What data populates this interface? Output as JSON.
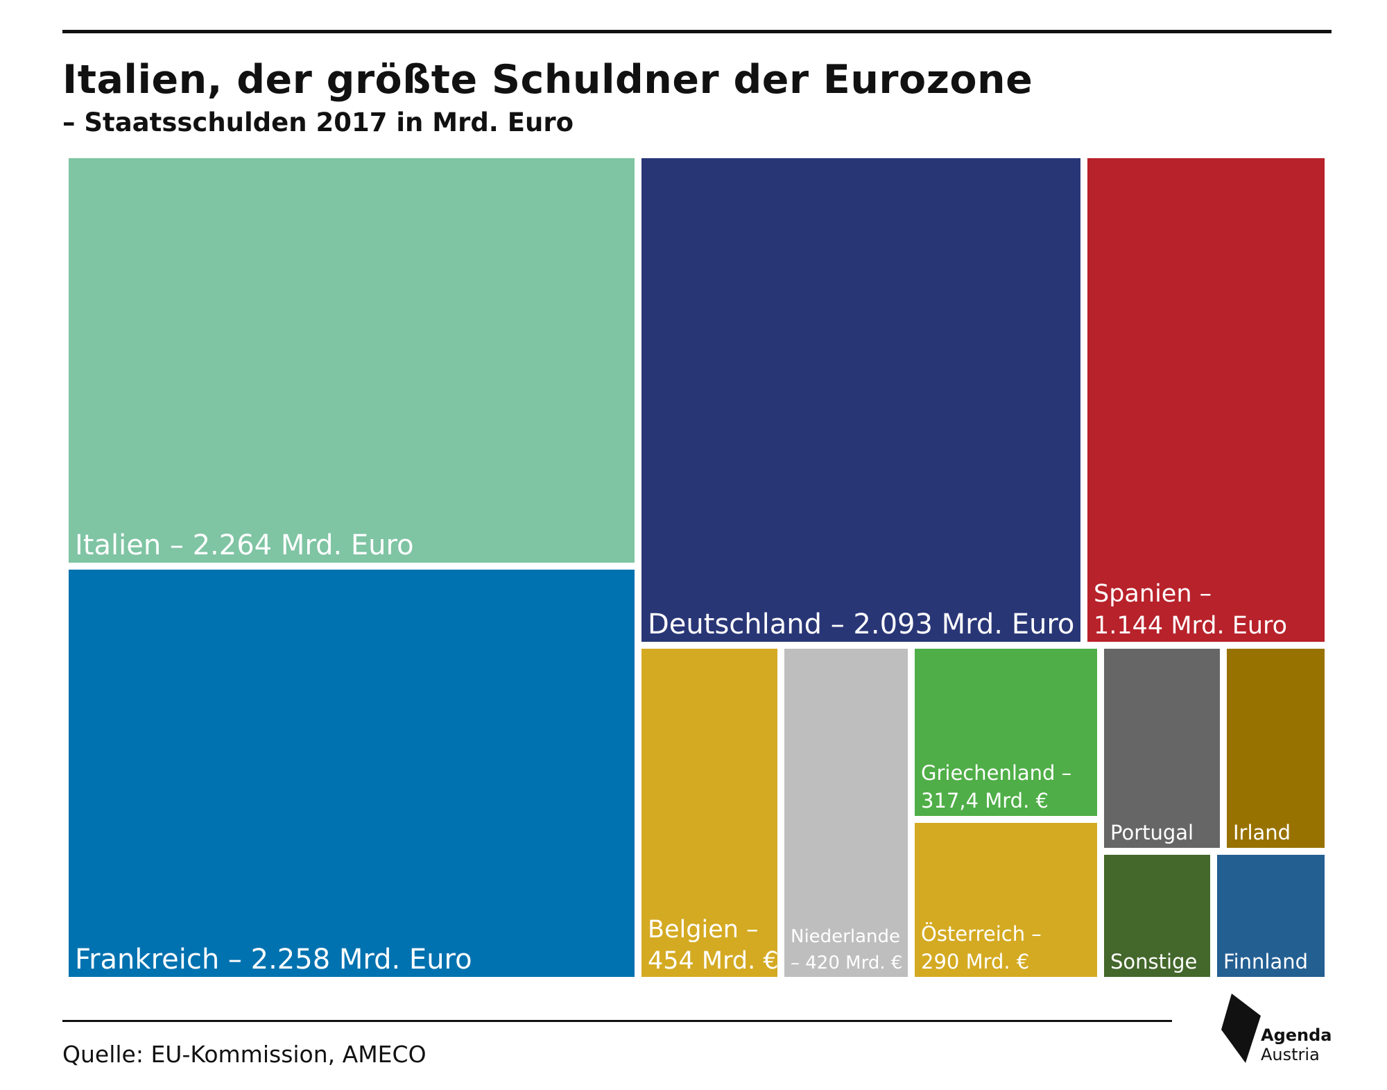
{
  "header": {
    "title": "Italien, der größte Schuldner der Eurozone",
    "subtitle": "– Staatsschulden 2017 in Mrd. Euro"
  },
  "footer": {
    "source": "Quelle: EU-Kommission, AMECO",
    "logo_line1": "Agenda",
    "logo_line2": "Austria"
  },
  "chart_data": {
    "type": "treemap",
    "title": "Italien, der größte Schuldner der Eurozone",
    "subtitle": "– Staatsschulden 2017 in Mrd. Euro",
    "unit": "Mrd. Euro",
    "items": [
      {
        "id": "italien",
        "label": [
          "Italien – 2.264 Mrd. Euro"
        ],
        "value": 2264,
        "color": "#7fc4a3",
        "text_color": "#ffffff"
      },
      {
        "id": "frankreich",
        "label": [
          "Frankreich – 2.258 Mrd. Euro"
        ],
        "value": 2258,
        "color": "#0072b0",
        "text_color": "#ffffff"
      },
      {
        "id": "deutschland",
        "label": [
          "Deutschland – 2.093 Mrd. Euro"
        ],
        "value": 2093,
        "color": "#293676",
        "text_color": "#ffffff"
      },
      {
        "id": "spanien",
        "label": [
          "Spanien –",
          "1.144 Mrd. Euro"
        ],
        "value": 1144,
        "color": "#b8222b",
        "text_color": "#ffffff"
      },
      {
        "id": "belgien",
        "label": [
          "Belgien –",
          "454 Mrd. €"
        ],
        "value": 454,
        "color": "#d4aa22",
        "text_color": "#ffffff"
      },
      {
        "id": "niederlande",
        "label": [
          "Niederlande",
          "– 420 Mrd. €"
        ],
        "value": 420,
        "color": "#bebebe",
        "text_color": "#ffffff"
      },
      {
        "id": "griechenland",
        "label": [
          "Griechenland –",
          "317,4 Mrd. €"
        ],
        "value": 317.4,
        "color": "#4fae47",
        "text_color": "#ffffff"
      },
      {
        "id": "oesterreich",
        "label": [
          "Österreich –",
          "290 Mrd. €"
        ],
        "value": 290,
        "color": "#d4aa22",
        "text_color": "#ffffff"
      },
      {
        "id": "portugal",
        "label": [
          "Portugal"
        ],
        "value": null,
        "color": "#666666",
        "text_color": "#ffffff"
      },
      {
        "id": "irland",
        "label": [
          "Irland"
        ],
        "value": null,
        "color": "#987200",
        "text_color": "#ffffff"
      },
      {
        "id": "sonstige",
        "label": [
          "Sonstige"
        ],
        "value": null,
        "color": "#44672b",
        "text_color": "#ffffff"
      },
      {
        "id": "finnland",
        "label": [
          "Finnland"
        ],
        "value": null,
        "color": "#245f92",
        "text_color": "#ffffff"
      }
    ]
  }
}
